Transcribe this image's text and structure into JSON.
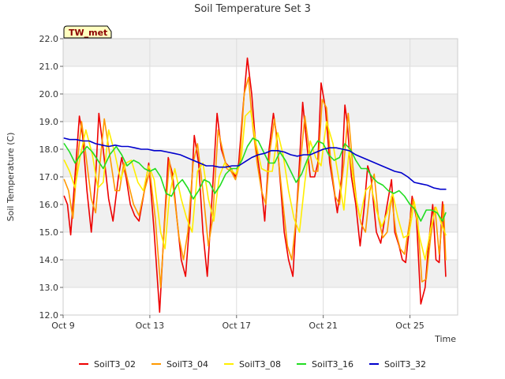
{
  "chart_data": {
    "type": "line",
    "title": "Soil Temperature Set 3",
    "xlabel": "Time",
    "ylabel": "Soil Temperature (C)",
    "ylim": [
      12.0,
      22.0
    ],
    "yticks": [
      12.0,
      13.0,
      14.0,
      15.0,
      16.0,
      17.0,
      18.0,
      19.0,
      20.0,
      21.0,
      22.0
    ],
    "ytick_labels": [
      "12.0",
      "13.0",
      "14.0",
      "15.0",
      "16.0",
      "17.0",
      "18.0",
      "19.0",
      "20.0",
      "21.0",
      "22.0"
    ],
    "xlim_days": [
      9,
      27.2
    ],
    "xticks": [
      9,
      13,
      17,
      21,
      25
    ],
    "xtick_labels": [
      "Oct 9",
      "Oct 13",
      "Oct 17",
      "Oct 21",
      "Oct 25"
    ],
    "grid": true,
    "legend_position": "bottom",
    "badge": "TW_met",
    "series": [
      {
        "name": "SoilT3_02",
        "color": "#ee0000",
        "x": [
          9.05,
          9.2,
          9.35,
          9.5,
          9.75,
          9.9,
          10.1,
          10.3,
          10.5,
          10.65,
          10.85,
          11.1,
          11.3,
          11.55,
          11.7,
          11.9,
          12.1,
          12.3,
          12.5,
          12.75,
          12.95,
          13.2,
          13.45,
          13.65,
          13.85,
          14.05,
          14.25,
          14.45,
          14.65,
          14.85,
          15.05,
          15.25,
          15.45,
          15.65,
          15.85,
          16.1,
          16.3,
          16.5,
          16.75,
          16.95,
          17.1,
          17.3,
          17.5,
          17.7,
          17.85,
          17.95,
          18.1,
          18.3,
          18.5,
          18.7,
          18.85,
          19.0,
          19.2,
          19.4,
          19.6,
          19.75,
          19.9,
          20.05,
          20.2,
          20.4,
          20.6,
          20.75,
          20.9,
          21.1,
          21.3,
          21.5,
          21.65,
          21.85,
          22.0,
          22.1,
          22.3,
          22.5,
          22.7,
          22.9,
          23.05,
          23.2,
          23.45,
          23.65,
          23.8,
          23.95,
          24.15,
          24.3,
          24.5,
          24.65,
          24.8,
          24.95,
          25.1,
          25.3,
          25.5,
          25.7,
          25.85,
          26.05,
          26.2,
          26.35,
          26.5,
          26.65
        ],
        "y": [
          16.3,
          16.0,
          14.9,
          16.5,
          19.2,
          18.5,
          16.5,
          15.0,
          17.0,
          19.3,
          18.0,
          16.2,
          15.4,
          17.0,
          17.7,
          17.0,
          16.0,
          15.6,
          15.4,
          16.5,
          17.5,
          15.0,
          12.1,
          15.0,
          17.7,
          17.1,
          15.5,
          14.0,
          13.4,
          15.5,
          18.5,
          17.5,
          15.0,
          13.4,
          16.0,
          19.3,
          18.0,
          17.5,
          17.3,
          17.0,
          17.5,
          19.5,
          21.3,
          20.0,
          18.5,
          17.8,
          17.0,
          15.4,
          18.0,
          19.3,
          18.5,
          17.0,
          15.0,
          14.0,
          13.4,
          15.5,
          17.5,
          19.7,
          18.5,
          17.0,
          17.0,
          17.5,
          20.4,
          19.5,
          17.5,
          16.5,
          15.7,
          17.0,
          19.6,
          19.0,
          17.0,
          16.0,
          14.5,
          16.0,
          17.4,
          17.0,
          15.0,
          14.6,
          15.3,
          16.0,
          16.9,
          15.0,
          14.5,
          14.0,
          13.9,
          15.0,
          16.3,
          15.5,
          12.4,
          13.0,
          14.5,
          16.0,
          14.0,
          13.9,
          16.1,
          13.4
        ]
      },
      {
        "name": "SoilT3_04",
        "color": "#ff9900",
        "x": [
          9.05,
          9.25,
          9.45,
          9.65,
          9.85,
          10.05,
          10.3,
          10.5,
          10.7,
          10.9,
          11.15,
          11.4,
          11.6,
          11.8,
          12.0,
          12.25,
          12.5,
          12.75,
          13.0,
          13.25,
          13.5,
          13.7,
          13.9,
          14.1,
          14.35,
          14.55,
          14.75,
          15.0,
          15.2,
          15.45,
          15.7,
          15.9,
          16.15,
          16.35,
          16.55,
          16.75,
          16.95,
          17.15,
          17.35,
          17.55,
          17.75,
          17.95,
          18.15,
          18.35,
          18.55,
          18.75,
          18.95,
          19.15,
          19.35,
          19.55,
          19.75,
          19.95,
          20.15,
          20.35,
          20.55,
          20.75,
          20.95,
          21.15,
          21.35,
          21.55,
          21.75,
          21.95,
          22.15,
          22.35,
          22.55,
          22.75,
          22.95,
          23.15,
          23.35,
          23.55,
          23.75,
          23.95,
          24.15,
          24.35,
          24.55,
          24.75,
          24.95,
          25.15,
          25.35,
          25.55,
          25.75,
          25.95,
          26.15,
          26.35,
          26.55,
          26.65
        ],
        "y": [
          16.9,
          16.5,
          15.5,
          17.5,
          19.0,
          17.8,
          16.2,
          15.7,
          17.5,
          19.1,
          17.8,
          16.5,
          16.5,
          17.5,
          16.8,
          16.0,
          15.6,
          16.5,
          17.2,
          15.5,
          13.0,
          15.5,
          17.6,
          16.5,
          14.8,
          14.0,
          15.0,
          17.5,
          18.2,
          16.5,
          14.5,
          15.5,
          18.7,
          18.0,
          17.3,
          17.2,
          16.9,
          17.5,
          20.0,
          20.6,
          18.8,
          17.5,
          16.5,
          16.0,
          18.0,
          19.1,
          17.5,
          16.0,
          14.5,
          14.0,
          15.5,
          17.5,
          19.2,
          18.0,
          17.2,
          17.2,
          19.8,
          19.5,
          17.5,
          16.3,
          16.0,
          17.5,
          19.3,
          17.5,
          16.0,
          15.3,
          15.0,
          16.5,
          17.1,
          15.5,
          14.8,
          15.0,
          16.3,
          15.0,
          14.4,
          14.2,
          15.2,
          16.2,
          15.5,
          13.2,
          13.3,
          14.8,
          15.9,
          14.2,
          16.0,
          14.0
        ]
      },
      {
        "name": "SoilT3_08",
        "color": "#ffee00",
        "x": [
          9.05,
          9.3,
          9.55,
          9.8,
          10.05,
          10.35,
          10.6,
          10.85,
          11.1,
          11.4,
          11.65,
          11.9,
          12.15,
          12.45,
          12.7,
          12.95,
          13.2,
          13.5,
          13.7,
          13.9,
          14.15,
          14.45,
          14.7,
          14.95,
          15.2,
          15.45,
          15.7,
          15.95,
          16.2,
          16.45,
          16.7,
          16.95,
          17.2,
          17.4,
          17.65,
          17.9,
          18.15,
          18.4,
          18.65,
          18.9,
          19.15,
          19.4,
          19.65,
          19.9,
          20.15,
          20.4,
          20.65,
          20.9,
          21.15,
          21.45,
          21.7,
          21.95,
          22.2,
          22.45,
          22.7,
          22.95,
          23.2,
          23.45,
          23.7,
          23.95,
          24.2,
          24.45,
          24.7,
          24.95,
          25.2,
          25.45,
          25.7,
          25.95,
          26.2,
          26.45,
          26.65
        ],
        "y": [
          17.6,
          17.2,
          16.6,
          17.8,
          18.7,
          17.8,
          16.6,
          16.8,
          18.7,
          17.8,
          16.9,
          17.5,
          17.6,
          16.8,
          16.5,
          17.4,
          16.9,
          15.0,
          14.4,
          16.3,
          17.3,
          16.2,
          15.5,
          15.0,
          17.2,
          17.5,
          16.2,
          15.4,
          17.0,
          17.5,
          17.3,
          17.1,
          17.5,
          19.2,
          19.4,
          18.2,
          17.3,
          17.2,
          17.2,
          18.6,
          17.8,
          16.5,
          15.5,
          15.0,
          16.8,
          18.3,
          17.7,
          17.4,
          19.0,
          18.2,
          17.0,
          15.8,
          18.0,
          16.5,
          15.5,
          16.5,
          16.7,
          15.8,
          15.2,
          15.7,
          16.4,
          15.5,
          14.8,
          14.9,
          16.1,
          14.8,
          14.0,
          15.1,
          15.9,
          15.3,
          14.9
        ]
      },
      {
        "name": "SoilT3_16",
        "color": "#22dd22",
        "x": [
          9.05,
          9.3,
          9.55,
          9.8,
          10.1,
          10.35,
          10.6,
          10.85,
          11.15,
          11.45,
          11.7,
          11.95,
          12.25,
          12.5,
          12.75,
          13.0,
          13.25,
          13.5,
          13.75,
          14.0,
          14.25,
          14.5,
          14.75,
          15.0,
          15.25,
          15.5,
          15.75,
          16.0,
          16.25,
          16.5,
          16.75,
          17.0,
          17.25,
          17.5,
          17.75,
          18.0,
          18.25,
          18.5,
          18.75,
          19.0,
          19.25,
          19.5,
          19.75,
          20.0,
          20.25,
          20.5,
          20.75,
          21.0,
          21.25,
          21.5,
          21.75,
          22.0,
          22.25,
          22.5,
          22.75,
          23.0,
          23.25,
          23.5,
          23.75,
          24.0,
          24.25,
          24.5,
          24.75,
          25.0,
          25.25,
          25.5,
          25.75,
          26.0,
          26.25,
          26.5,
          26.65
        ],
        "y": [
          18.2,
          17.9,
          17.5,
          17.8,
          18.1,
          17.9,
          17.6,
          17.3,
          17.8,
          18.1,
          17.8,
          17.4,
          17.6,
          17.5,
          17.3,
          17.2,
          17.3,
          17.0,
          16.4,
          16.3,
          16.7,
          16.9,
          16.6,
          16.2,
          16.5,
          16.9,
          16.8,
          16.4,
          16.7,
          17.1,
          17.3,
          17.3,
          17.6,
          18.1,
          18.4,
          18.3,
          17.9,
          17.5,
          17.5,
          17.9,
          17.6,
          17.2,
          16.8,
          17.1,
          17.6,
          18.0,
          18.3,
          18.2,
          17.8,
          17.6,
          17.7,
          18.2,
          18.0,
          17.6,
          17.3,
          17.3,
          17.0,
          16.8,
          16.7,
          16.5,
          16.4,
          16.5,
          16.3,
          16.0,
          15.8,
          15.4,
          15.8,
          15.8,
          15.7,
          15.4,
          15.7
        ]
      },
      {
        "name": "SoilT3_32",
        "color": "#0000cc",
        "x": [
          9.05,
          9.3,
          9.6,
          9.9,
          10.2,
          10.5,
          10.8,
          11.1,
          11.4,
          11.7,
          12.0,
          12.3,
          12.6,
          12.9,
          13.2,
          13.5,
          13.8,
          14.1,
          14.4,
          14.7,
          15.0,
          15.3,
          15.6,
          15.9,
          16.2,
          16.5,
          16.8,
          17.1,
          17.4,
          17.7,
          18.0,
          18.3,
          18.6,
          18.9,
          19.2,
          19.5,
          19.8,
          20.1,
          20.4,
          20.7,
          21.0,
          21.3,
          21.6,
          21.9,
          22.2,
          22.5,
          22.8,
          23.1,
          23.4,
          23.7,
          24.0,
          24.3,
          24.6,
          24.9,
          25.2,
          25.5,
          25.8,
          26.1,
          26.4,
          26.65
        ],
        "y": [
          18.4,
          18.35,
          18.35,
          18.3,
          18.3,
          18.2,
          18.15,
          18.1,
          18.15,
          18.1,
          18.1,
          18.05,
          18.0,
          18.0,
          17.95,
          17.95,
          17.9,
          17.85,
          17.8,
          17.7,
          17.6,
          17.5,
          17.4,
          17.4,
          17.35,
          17.35,
          17.4,
          17.4,
          17.55,
          17.7,
          17.8,
          17.85,
          17.95,
          17.95,
          17.9,
          17.8,
          17.75,
          17.8,
          17.8,
          17.9,
          18.0,
          18.05,
          18.05,
          18.0,
          17.95,
          17.8,
          17.7,
          17.6,
          17.5,
          17.4,
          17.3,
          17.2,
          17.15,
          17.0,
          16.8,
          16.75,
          16.7,
          16.6,
          16.55,
          16.55
        ]
      }
    ]
  }
}
